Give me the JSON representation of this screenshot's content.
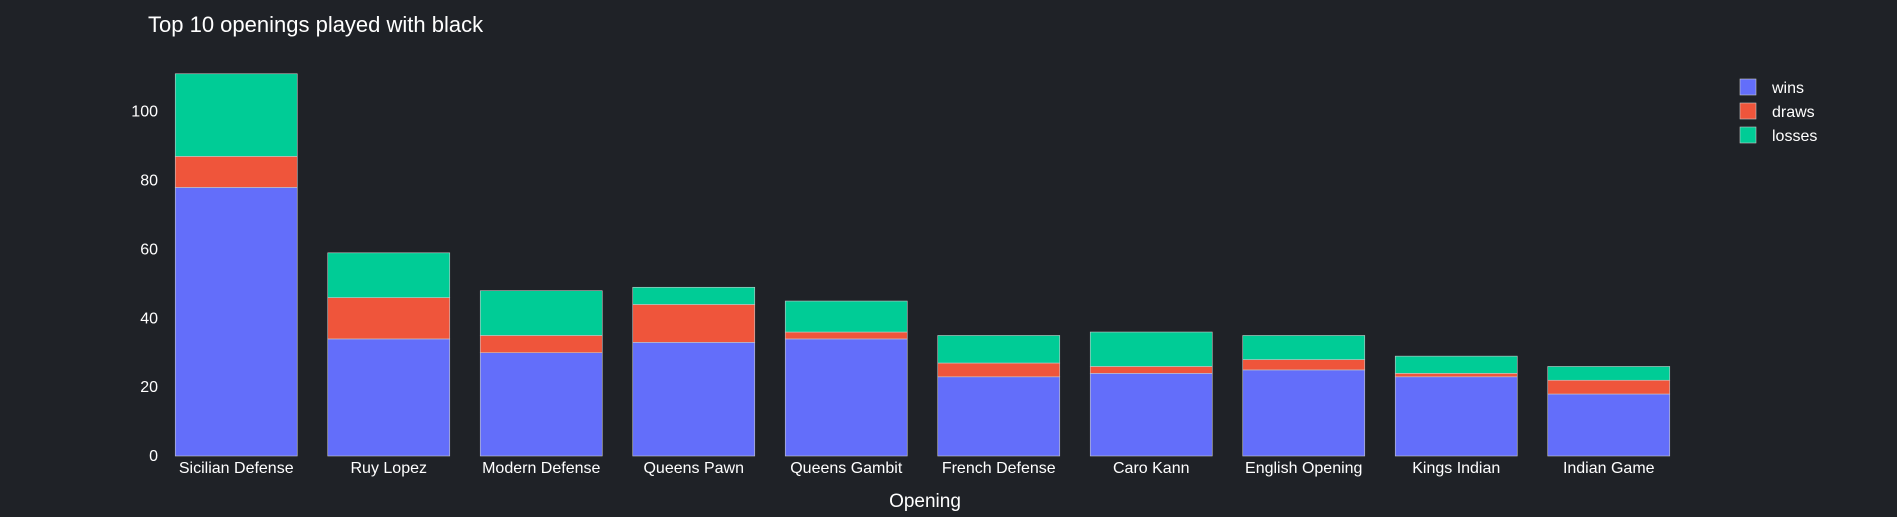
{
  "chart_data": {
    "type": "bar",
    "stacked": true,
    "title": "Top 10 openings played with black",
    "xlabel": "Opening",
    "ylabel": "",
    "ylim": [
      0,
      115
    ],
    "yticks": [
      0,
      20,
      40,
      60,
      80,
      100
    ],
    "grid": false,
    "legend_position": "top-right",
    "categories": [
      "Sicilian Defense",
      "Ruy Lopez",
      "Modern Defense",
      "Queens Pawn",
      "Queens Gambit",
      "French Defense",
      "Caro Kann",
      "English Opening",
      "Kings Indian",
      "Indian Game"
    ],
    "series": [
      {
        "name": "wins",
        "color": "#636efa",
        "values": [
          78,
          34,
          30,
          33,
          34,
          23,
          24,
          25,
          23,
          18
        ]
      },
      {
        "name": "draws",
        "color": "#ef553b",
        "values": [
          9,
          12,
          5,
          11,
          2,
          4,
          2,
          3,
          1,
          4
        ]
      },
      {
        "name": "losses",
        "color": "#00cc96",
        "values": [
          24,
          13,
          13,
          5,
          9,
          8,
          10,
          7,
          5,
          4
        ]
      }
    ]
  }
}
